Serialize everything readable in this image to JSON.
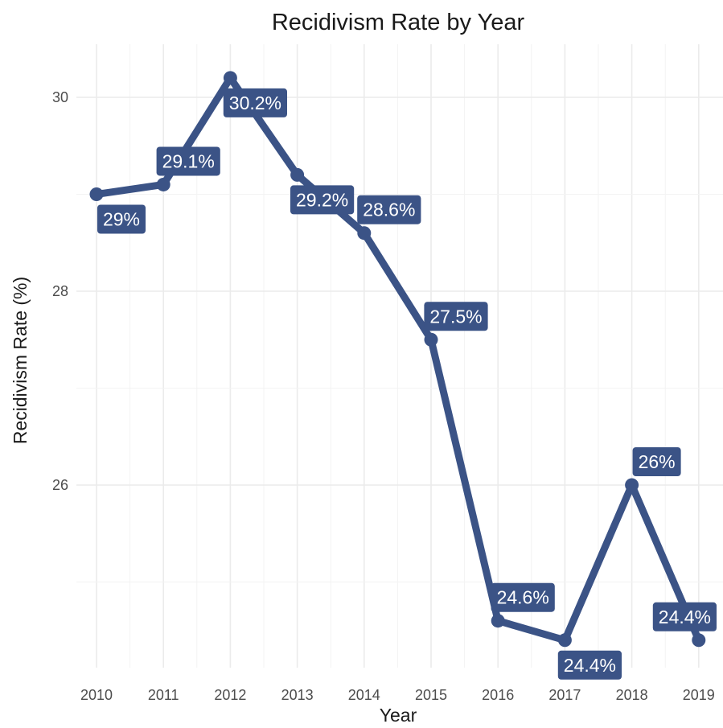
{
  "chart_data": {
    "type": "line",
    "title": "Recidivism Rate by Year",
    "xlabel": "Year",
    "ylabel": "Recidivism Rate (%)",
    "categories": [
      "2010",
      "2011",
      "2012",
      "2013",
      "2014",
      "2015",
      "2016",
      "2017",
      "2018",
      "2019"
    ],
    "series": [
      {
        "values": [
          29.0,
          29.1,
          30.2,
          29.2,
          28.6,
          27.5,
          24.6,
          24.4,
          26.0,
          24.4
        ],
        "data_labels": [
          "29%",
          "29.1%",
          "30.2%",
          "29.2%",
          "28.6%",
          "27.5%",
          "24.6%",
          "24.4%",
          "26%",
          "24.4%"
        ],
        "color": "#3b5386"
      }
    ],
    "yticks": [
      "26",
      "28",
      "30"
    ],
    "ylim": [
      24.2,
      30.5
    ],
    "grid": true,
    "legend": "none"
  }
}
